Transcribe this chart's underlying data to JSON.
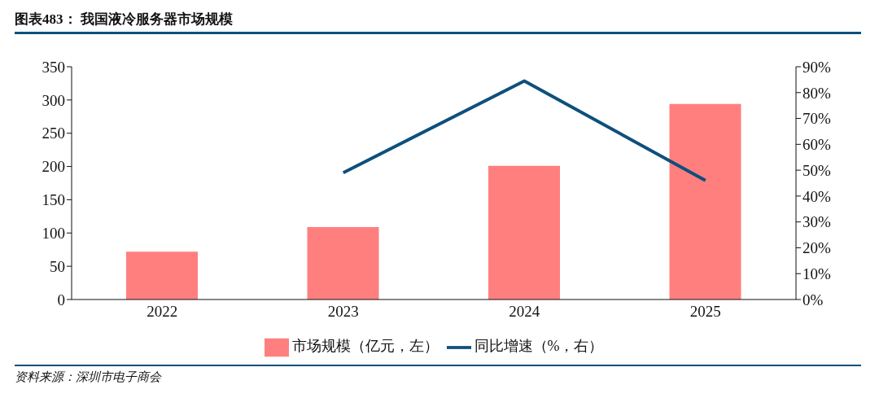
{
  "chart_data": {
    "type": "bar",
    "title": "图表483：  我国液冷服务器市场规模",
    "categories": [
      "2022",
      "2023",
      "2024",
      "2025"
    ],
    "series": [
      {
        "name": "市场规模（亿元，左）",
        "axis": "y",
        "color": "#ff7f7f",
        "values": [
          72,
          109,
          201,
          294
        ]
      },
      {
        "name": "同比增速（%，右）",
        "type": "line",
        "axis": "y2",
        "color": "#0e4f7c",
        "values": [
          null,
          49,
          84.5,
          46
        ]
      }
    ],
    "ylim": [
      0,
      350
    ],
    "yticks": [
      0,
      50,
      100,
      150,
      200,
      250,
      300,
      350
    ],
    "y2lim": [
      0,
      90
    ],
    "y2ticks": [
      {
        "value": 0,
        "label": "0%"
      },
      {
        "value": 10,
        "label": "10%"
      },
      {
        "value": 20,
        "label": "20%"
      },
      {
        "value": 30,
        "label": "30%"
      },
      {
        "value": 40,
        "label": "40%"
      },
      {
        "value": 50,
        "label": "50%"
      },
      {
        "value": 60,
        "label": "60%"
      },
      {
        "value": 70,
        "label": "70%"
      },
      {
        "value": 80,
        "label": "80%"
      },
      {
        "value": 90,
        "label": "90%"
      }
    ],
    "grid": false,
    "legend": "bottom",
    "marker": "none",
    "line_style": "solid",
    "annotations": [
      "资料来源：深圳市电子商会"
    ]
  }
}
